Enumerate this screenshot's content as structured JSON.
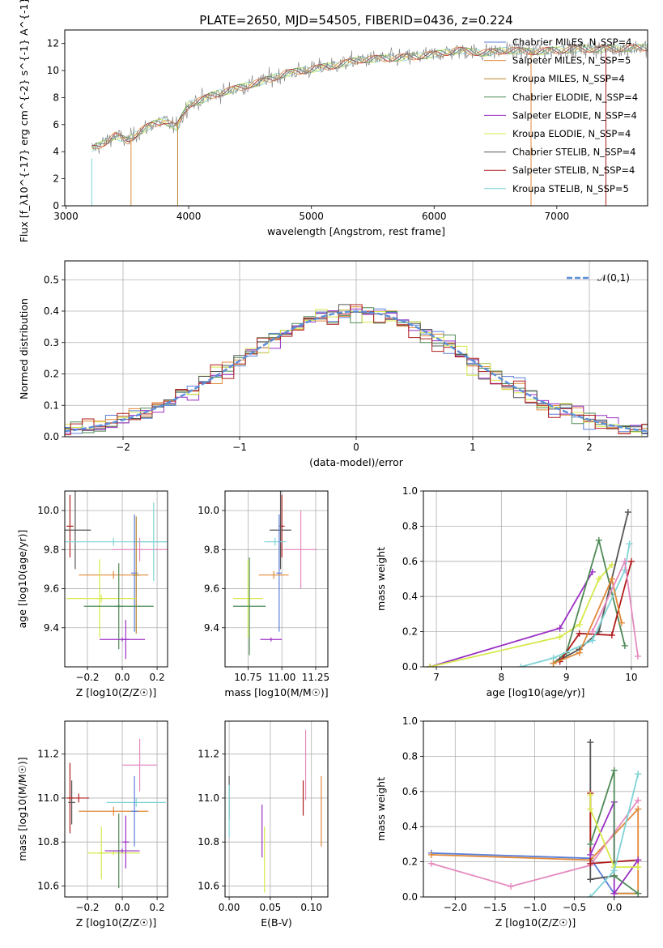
{
  "figure": {
    "title": "PLATE=2650, MJD=54505, FIBERID=0436, z=0.224"
  },
  "colors": {
    "axis": "#000000",
    "grid": "#b0b0b0",
    "Chabrier MILES": "#5b7fd8",
    "Salpeter MILES": "#e0893a",
    "Kroupa MILES": "#b8862b",
    "Chabrier ELODIE": "#4f8a56",
    "Salpeter ELODIE": "#9b2fc4",
    "Kroupa ELODIE": "#d7e84a",
    "Chabrier STELIB": "#555555",
    "Salpeter STELIB": "#b01c1c",
    "Kroupa STELIB": "#7fd3d6",
    "extra pink": "#e58bbf",
    "gaussian": "#5b8ed8"
  },
  "chart_data": [
    {
      "id": "spectrum",
      "type": "line",
      "xlabel": "wavelength [Angstrom, rest frame]",
      "ylabel": "Flux [f_λ10^{-17} erg cm^{-2} s^{-1} A^{-1}]",
      "xlim": [
        2990,
        7740
      ],
      "ylim": [
        0,
        13
      ],
      "xticks": [
        3000,
        4000,
        5000,
        6000,
        7000
      ],
      "yticks": [
        0,
        2,
        4,
        6,
        8,
        10,
        12
      ],
      "grid": false,
      "legend_position": "top-right",
      "series": [
        {
          "name": "Chabrier MILES, N_SSP=4"
        },
        {
          "name": "Salpeter MILES, N_SSP=5"
        },
        {
          "name": "Kroupa MILES, N_SSP=4"
        },
        {
          "name": "Chabrier ELODIE, N_SSP=4"
        },
        {
          "name": "Salpeter ELODIE, N_SSP=4"
        },
        {
          "name": "Kroupa ELODIE, N_SSP=4"
        },
        {
          "name": "Chabrier STELIB, N_SSP=4"
        },
        {
          "name": "Salpeter STELIB, N_SSP=4"
        },
        {
          "name": "Kroupa STELIB, N_SSP=5"
        }
      ],
      "continuum": {
        "x": [
          3210,
          3300,
          3400,
          3500,
          3600,
          3700,
          3800,
          3900,
          4000,
          4100,
          4200,
          4400,
          4600,
          4800,
          5000,
          5200,
          5400,
          5600,
          5800,
          6000,
          6200,
          6400,
          6600,
          6800,
          7000,
          7200,
          7400,
          7740
        ],
        "y": [
          4.2,
          4.6,
          5.2,
          4.8,
          5.5,
          6.0,
          6.3,
          5.8,
          7.5,
          7.8,
          8.2,
          8.7,
          9.2,
          9.8,
          10.1,
          10.4,
          10.8,
          10.9,
          11.0,
          11.2,
          11.5,
          11.3,
          11.5,
          11.4,
          11.5,
          11.6,
          11.6,
          11.7
        ]
      }
    },
    {
      "id": "residuals",
      "type": "line",
      "xlabel": "(data-model)/error",
      "ylabel": "Normed distribution",
      "xlim": [
        -2.5,
        2.5
      ],
      "ylim": [
        0,
        0.56
      ],
      "xticks": [
        -2,
        -1,
        0,
        1,
        2
      ],
      "yticks": [
        0.0,
        0.1,
        0.2,
        0.3,
        0.4,
        0.5
      ],
      "grid": true,
      "legend_position": "top-right",
      "legend": [
        "𝒩(0,1)"
      ],
      "bin_width": 0.1
    },
    {
      "id": "age-vs-Z",
      "type": "scatter",
      "xlabel": "Z [log10(Z/Z☉)]",
      "ylabel": "age [log10(age/yr)]",
      "xlim": [
        -0.33,
        0.26
      ],
      "ylim": [
        9.2,
        10.1
      ],
      "xticks": [
        -0.2,
        0.0,
        0.2
      ],
      "yticks": [
        9.4,
        9.6,
        9.8,
        10.0
      ],
      "grid": true,
      "points": [
        {
          "x": -0.3,
          "y": 9.92,
          "xerr": 0.02,
          "yerr": 0.16,
          "color": "Salpeter STELIB"
        },
        {
          "x": -0.27,
          "y": 9.9,
          "xerr": 0.09,
          "yerr": 0.2,
          "color": "Chabrier STELIB"
        },
        {
          "x": -0.05,
          "y": 9.84,
          "xerr": 0.3,
          "yerr": 0.02,
          "color": "Kroupa STELIB"
        },
        {
          "x": 0.1,
          "y": 9.8,
          "xerr": 0.16,
          "yerr": 0.06,
          "color": "extra pink"
        },
        {
          "x": 0.18,
          "y": 9.84,
          "xerr": 0.1,
          "yerr": 0.2,
          "color": "Kroupa STELIB"
        },
        {
          "x": 0.07,
          "y": 9.68,
          "xerr": 0.02,
          "yerr": 0.3,
          "color": "Chabrier MILES"
        },
        {
          "x": -0.05,
          "y": 9.67,
          "xerr": 0.2,
          "yerr": 0.02,
          "color": "Salpeter MILES"
        },
        {
          "x": 0.08,
          "y": 9.67,
          "xerr": 0.02,
          "yerr": 0.3,
          "color": "Kroupa MILES"
        },
        {
          "x": -0.12,
          "y": 9.55,
          "xerr": 0.2,
          "yerr": 0.02,
          "color": "Kroupa ELODIE"
        },
        {
          "x": -0.13,
          "y": 9.55,
          "xerr": 0.02,
          "yerr": 0.2,
          "color": "Kroupa ELODIE"
        },
        {
          "x": -0.02,
          "y": 9.51,
          "xerr": 0.2,
          "yerr": 0.01,
          "color": "Chabrier ELODIE"
        },
        {
          "x": -0.02,
          "y": 9.51,
          "xerr": 0.02,
          "yerr": 0.22,
          "color": "Chabrier ELODIE"
        },
        {
          "x": 0.0,
          "y": 9.34,
          "xerr": 0.13,
          "yerr": 0.01,
          "color": "Salpeter ELODIE"
        },
        {
          "x": 0.02,
          "y": 9.34,
          "xerr": 0.02,
          "yerr": 0.1,
          "color": "Salpeter ELODIE"
        }
      ]
    },
    {
      "id": "age-vs-mass",
      "type": "scatter",
      "xlabel": "mass [log10(M/M☉)]",
      "ylabel": "",
      "xlim": [
        10.58,
        11.34
      ],
      "ylim": [
        9.2,
        10.1
      ],
      "xticks": [
        10.75,
        11.0,
        11.25
      ],
      "yticks": [
        9.4,
        9.6,
        9.8,
        10.0
      ],
      "grid": true,
      "points": [
        {
          "x": 11.0,
          "y": 9.92,
          "xerr": 0.02,
          "yerr": 0.16,
          "color": "Salpeter STELIB"
        },
        {
          "x": 10.99,
          "y": 9.9,
          "xerr": 0.08,
          "yerr": 0.2,
          "color": "Chabrier STELIB"
        },
        {
          "x": 10.95,
          "y": 9.84,
          "xerr": 0.08,
          "yerr": 0.02,
          "color": "Kroupa STELIB"
        },
        {
          "x": 11.14,
          "y": 9.8,
          "xerr": 0.12,
          "yerr": 0.2,
          "color": "extra pink"
        },
        {
          "x": 10.98,
          "y": 9.68,
          "xerr": 0.02,
          "yerr": 0.3,
          "color": "Chabrier MILES"
        },
        {
          "x": 10.94,
          "y": 9.67,
          "xerr": 0.11,
          "yerr": 0.02,
          "color": "Salpeter MILES"
        },
        {
          "x": 10.75,
          "y": 9.55,
          "xerr": 0.11,
          "yerr": 0.2,
          "color": "Kroupa ELODIE"
        },
        {
          "x": 10.76,
          "y": 9.51,
          "xerr": 0.12,
          "yerr": 0.25,
          "color": "Chabrier ELODIE"
        },
        {
          "x": 10.92,
          "y": 9.34,
          "xerr": 0.08,
          "yerr": 0.01,
          "color": "Salpeter ELODIE"
        }
      ]
    },
    {
      "id": "weight-vs-age",
      "type": "line",
      "xlabel": "age [log10(age/yr)]",
      "ylabel": "mass weight",
      "xlim": [
        6.8,
        10.25
      ],
      "ylim": [
        0,
        1.0
      ],
      "xticks": [
        7,
        8,
        9,
        10
      ],
      "yticks": [
        0.0,
        0.2,
        0.4,
        0.6,
        0.8,
        1.0
      ],
      "grid": true,
      "series": [
        {
          "color": "Salpeter ELODIE",
          "x": [
            6.9,
            8.9,
            9.4
          ],
          "y": [
            0.0,
            0.22,
            0.54
          ]
        },
        {
          "color": "Kroupa ELODIE",
          "x": [
            6.9,
            8.9,
            9.2,
            9.5,
            9.7
          ],
          "y": [
            0.0,
            0.17,
            0.24,
            0.5,
            0.58
          ]
        },
        {
          "color": "Chabrier ELODIE",
          "x": [
            8.8,
            9.0,
            9.5,
            9.9
          ],
          "y": [
            0.02,
            0.08,
            0.72,
            0.12
          ]
        },
        {
          "color": "Chabrier STELIB",
          "x": [
            8.9,
            9.2,
            9.5,
            9.95
          ],
          "y": [
            0.04,
            0.1,
            0.2,
            0.88
          ]
        },
        {
          "color": "Salpeter STELIB",
          "x": [
            8.9,
            9.2,
            9.7,
            10.0
          ],
          "y": [
            0.03,
            0.19,
            0.18,
            0.6
          ]
        },
        {
          "color": "Kroupa STELIB",
          "x": [
            8.3,
            8.8,
            9.4,
            9.9,
            9.97
          ],
          "y": [
            0.0,
            0.05,
            0.15,
            0.55,
            0.7
          ]
        },
        {
          "color": "Salpeter MILES",
          "x": [
            8.8,
            9.2,
            9.7,
            9.85
          ],
          "y": [
            0.02,
            0.08,
            0.5,
            0.25
          ]
        },
        {
          "color": "extra pink",
          "x": [
            9.4,
            9.9,
            10.1
          ],
          "y": [
            0.2,
            0.6,
            0.06
          ]
        }
      ]
    },
    {
      "id": "mass-vs-Z",
      "type": "scatter",
      "xlabel": "Z [log10(Z/Z☉)]",
      "ylabel": "mass [log10(M/M☉)]",
      "xlim": [
        -0.33,
        0.26
      ],
      "ylim": [
        10.55,
        11.35
      ],
      "xticks": [
        -0.2,
        0.0,
        0.2
      ],
      "yticks": [
        10.6,
        10.8,
        11.0,
        11.2
      ],
      "grid": true,
      "points": [
        {
          "x": -0.3,
          "y": 11.0,
          "xerr": 0.02,
          "yerr": 0.16,
          "color": "Salpeter STELIB"
        },
        {
          "x": -0.29,
          "y": 10.98,
          "xerr": 0.02,
          "yerr": 0.1,
          "color": "Chabrier STELIB"
        },
        {
          "x": -0.25,
          "y": 11.0,
          "xerr": 0.06,
          "yerr": 0.02,
          "color": "Salpeter STELIB"
        },
        {
          "x": 0.08,
          "y": 10.98,
          "xerr": 0.17,
          "yerr": 0.02,
          "color": "Kroupa STELIB"
        },
        {
          "x": 0.1,
          "y": 11.15,
          "xerr": 0.1,
          "yerr": 0.12,
          "color": "extra pink"
        },
        {
          "x": -0.05,
          "y": 10.94,
          "xerr": 0.2,
          "yerr": 0.02,
          "color": "Salpeter MILES"
        },
        {
          "x": 0.07,
          "y": 10.94,
          "xerr": 0.02,
          "yerr": 0.16,
          "color": "Chabrier MILES"
        },
        {
          "x": -0.12,
          "y": 10.75,
          "xerr": 0.02,
          "yerr": 0.12,
          "color": "Kroupa ELODIE"
        },
        {
          "x": -0.05,
          "y": 10.75,
          "xerr": 0.15,
          "yerr": 0.01,
          "color": "Kroupa ELODIE"
        },
        {
          "x": -0.02,
          "y": 10.76,
          "xerr": 0.02,
          "yerr": 0.17,
          "color": "Chabrier ELODIE"
        },
        {
          "x": 0.0,
          "y": 10.76,
          "xerr": 0.1,
          "yerr": 0.01,
          "color": "Salpeter ELODIE"
        },
        {
          "x": 0.02,
          "y": 10.8,
          "xerr": 0.02,
          "yerr": 0.12,
          "color": "Salpeter ELODIE"
        }
      ]
    },
    {
      "id": "mass-vs-ebv",
      "type": "scatter",
      "xlabel": "E(B-V)",
      "ylabel": "",
      "xlim": [
        -0.005,
        0.12
      ],
      "ylim": [
        10.55,
        11.35
      ],
      "xticks": [
        0.0,
        0.05,
        0.1
      ],
      "yticks": [
        10.6,
        10.8,
        11.0,
        11.2
      ],
      "grid": true,
      "points": [
        {
          "x": 0.0,
          "y": 11.0,
          "xerr": 0.0,
          "yerr": 0.1,
          "color": "Chabrier STELIB"
        },
        {
          "x": 0.0,
          "y": 10.94,
          "xerr": 0.0,
          "yerr": 0.12,
          "color": "Kroupa STELIB"
        },
        {
          "x": 0.04,
          "y": 10.85,
          "xerr": 0.0,
          "yerr": 0.12,
          "color": "Salpeter ELODIE"
        },
        {
          "x": 0.043,
          "y": 10.72,
          "xerr": 0.0,
          "yerr": 0.15,
          "color": "Kroupa ELODIE"
        },
        {
          "x": 0.09,
          "y": 11.0,
          "xerr": 0.0,
          "yerr": 0.08,
          "color": "Salpeter STELIB"
        },
        {
          "x": 0.093,
          "y": 11.15,
          "xerr": 0.0,
          "yerr": 0.16,
          "color": "extra pink"
        },
        {
          "x": 0.112,
          "y": 10.94,
          "xerr": 0.0,
          "yerr": 0.16,
          "color": "Salpeter MILES"
        }
      ]
    },
    {
      "id": "weight-vs-Z",
      "type": "line",
      "xlabel": "Z [log10(Z/Z☉)]",
      "ylabel": "mass weight",
      "xlim": [
        -2.4,
        0.42
      ],
      "ylim": [
        0,
        1.0
      ],
      "xticks": [
        -2.0,
        -1.5,
        -1.0,
        -0.5,
        0.0
      ],
      "yticks": [
        0.0,
        0.2,
        0.4,
        0.6,
        0.8,
        1.0
      ],
      "grid": true,
      "series": [
        {
          "color": "Chabrier MILES",
          "x": [
            -2.3,
            -0.3,
            0.0,
            0.3
          ],
          "y": [
            0.25,
            0.22,
            0.02,
            0.02
          ]
        },
        {
          "color": "Salpeter MILES",
          "x": [
            -2.3,
            -0.3,
            0.3,
            0.3,
            0.0
          ],
          "y": [
            0.24,
            0.21,
            0.5,
            0.02,
            0.02
          ]
        },
        {
          "color": "extra pink",
          "x": [
            -2.3,
            -1.3,
            -0.3,
            0.3
          ],
          "y": [
            0.19,
            0.06,
            0.18,
            0.55
          ]
        },
        {
          "color": "Chabrier STELIB",
          "x": [
            -0.3,
            -0.3,
            0.0
          ],
          "y": [
            0.88,
            0.1,
            0.12
          ]
        },
        {
          "color": "Salpeter STELIB",
          "x": [
            -0.3,
            -0.3,
            0.3
          ],
          "y": [
            0.59,
            0.19,
            0.21
          ]
        },
        {
          "color": "Salpeter ELODIE",
          "x": [
            -0.3,
            0.0,
            0.0,
            0.3
          ],
          "y": [
            0.24,
            0.54,
            0.02,
            0.21
          ]
        },
        {
          "color": "Chabrier ELODIE",
          "x": [
            -0.3,
            0.0,
            0.0,
            0.3
          ],
          "y": [
            0.3,
            0.72,
            0.12,
            0.02
          ]
        },
        {
          "color": "Kroupa ELODIE",
          "x": [
            -0.3,
            -0.3,
            0.0,
            0.3
          ],
          "y": [
            0.58,
            0.5,
            0.17,
            0.17
          ]
        },
        {
          "color": "Kroupa STELIB",
          "x": [
            -0.3,
            0.0,
            0.3
          ],
          "y": [
            0.0,
            0.15,
            0.7
          ]
        }
      ]
    }
  ]
}
